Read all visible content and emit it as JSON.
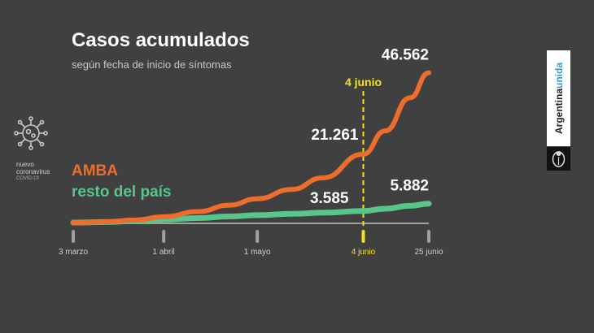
{
  "chart_data": {
    "type": "line",
    "title": "Casos acumulados",
    "subtitle": "según fecha de inicio de síntomas",
    "x_ticks": [
      "3 marzo",
      "1 abril",
      "1 mayo",
      "4 junio",
      "25 junio"
    ],
    "x_tick_days": [
      0,
      29,
      59,
      93,
      114
    ],
    "highlight": {
      "label": "4 junio",
      "day": 93
    },
    "ylim": [
      0,
      50000
    ],
    "series": [
      {
        "name": "AMBA",
        "color": "#ee6c2c",
        "x": [
          0,
          10,
          20,
          29,
          40,
          50,
          59,
          70,
          80,
          93,
          100,
          108,
          114
        ],
        "values": [
          0,
          200,
          800,
          1800,
          3400,
          5400,
          7400,
          10300,
          13900,
          21261,
          28500,
          38800,
          46562
        ],
        "labels": [
          {
            "day": 93,
            "text": "21.261"
          },
          {
            "day": 114,
            "text": "46.562"
          }
        ]
      },
      {
        "name": "resto del país",
        "color": "#58c58a",
        "x": [
          0,
          10,
          20,
          29,
          40,
          50,
          59,
          70,
          80,
          93,
          100,
          108,
          114
        ],
        "values": [
          0,
          150,
          500,
          900,
          1400,
          1900,
          2300,
          2700,
          3050,
          3585,
          4300,
          5200,
          5882
        ],
        "labels": [
          {
            "day": 93,
            "text": "3.585"
          },
          {
            "day": 114,
            "text": "5.882"
          }
        ]
      }
    ]
  },
  "virus_label": {
    "line1": "nuevo",
    "line2": "coronavirus",
    "line3": "COVID-19"
  },
  "brand": {
    "part1": "Argentina",
    "part2": "unida"
  },
  "colors": {
    "background": "#404040",
    "axis": "#a0a0a0",
    "highlight": "#f5e11a"
  },
  "icons": [
    "virus-icon",
    "national-seal-icon"
  ]
}
